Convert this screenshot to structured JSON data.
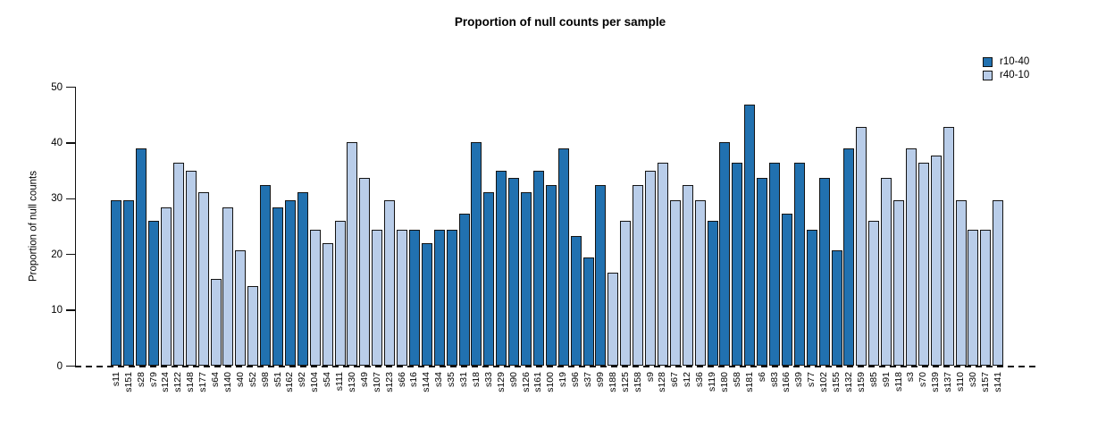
{
  "title": "Proportion of null counts per sample",
  "chart_data": {
    "type": "bar",
    "title": "Proportion of null counts per sample",
    "xlabel": "",
    "ylabel": "Proportion of null counts",
    "ylim": [
      0,
      50
    ],
    "yticks": [
      0,
      10,
      20,
      30,
      40,
      50
    ],
    "grid": false,
    "legend_position": "top-right",
    "legend": [
      {
        "name": "r10-40",
        "color": "#2171b0"
      },
      {
        "name": "r40-10",
        "color": "#b9cde9"
      }
    ],
    "series_colors": {
      "r10-40": "#2171b0",
      "r40-10": "#b9cde9"
    },
    "bar_border_color": "#141414",
    "samples": [
      {
        "label": "s11",
        "value": 29.8,
        "series": "r10-40"
      },
      {
        "label": "s151",
        "value": 29.8,
        "series": "r10-40"
      },
      {
        "label": "s28",
        "value": 39.0,
        "series": "r10-40"
      },
      {
        "label": "s79",
        "value": 26.0,
        "series": "r10-40"
      },
      {
        "label": "s124",
        "value": 28.5,
        "series": "r40-10"
      },
      {
        "label": "s122",
        "value": 36.4,
        "series": "r40-10"
      },
      {
        "label": "s148",
        "value": 35.0,
        "series": "r40-10"
      },
      {
        "label": "s177",
        "value": 31.2,
        "series": "r40-10"
      },
      {
        "label": "s64",
        "value": 15.6,
        "series": "r40-10"
      },
      {
        "label": "s140",
        "value": 28.5,
        "series": "r40-10"
      },
      {
        "label": "s40",
        "value": 20.8,
        "series": "r40-10"
      },
      {
        "label": "s52",
        "value": 14.3,
        "series": "r40-10"
      },
      {
        "label": "s98",
        "value": 32.5,
        "series": "r10-40"
      },
      {
        "label": "s51",
        "value": 28.5,
        "series": "r10-40"
      },
      {
        "label": "s162",
        "value": 29.8,
        "series": "r10-40"
      },
      {
        "label": "s92",
        "value": 31.2,
        "series": "r10-40"
      },
      {
        "label": "s104",
        "value": 24.5,
        "series": "r40-10"
      },
      {
        "label": "s54",
        "value": 22.1,
        "series": "r40-10"
      },
      {
        "label": "s111",
        "value": 26.0,
        "series": "r40-10"
      },
      {
        "label": "s130",
        "value": 40.2,
        "series": "r40-10"
      },
      {
        "label": "s49",
        "value": 33.8,
        "series": "r40-10"
      },
      {
        "label": "s107",
        "value": 24.5,
        "series": "r40-10"
      },
      {
        "label": "s123",
        "value": 29.8,
        "series": "r40-10"
      },
      {
        "label": "s66",
        "value": 24.5,
        "series": "r40-10"
      },
      {
        "label": "s16",
        "value": 24.5,
        "series": "r10-40"
      },
      {
        "label": "s144",
        "value": 22.1,
        "series": "r10-40"
      },
      {
        "label": "s34",
        "value": 24.5,
        "series": "r10-40"
      },
      {
        "label": "s35",
        "value": 24.5,
        "series": "r10-40"
      },
      {
        "label": "s31",
        "value": 27.3,
        "series": "r10-40"
      },
      {
        "label": "s18",
        "value": 40.2,
        "series": "r10-40"
      },
      {
        "label": "s33",
        "value": 31.2,
        "series": "r10-40"
      },
      {
        "label": "s129",
        "value": 35.0,
        "series": "r10-40"
      },
      {
        "label": "s90",
        "value": 33.8,
        "series": "r10-40"
      },
      {
        "label": "s126",
        "value": 31.2,
        "series": "r10-40"
      },
      {
        "label": "s161",
        "value": 35.0,
        "series": "r10-40"
      },
      {
        "label": "s100",
        "value": 32.5,
        "series": "r10-40"
      },
      {
        "label": "s19",
        "value": 39.0,
        "series": "r10-40"
      },
      {
        "label": "s96",
        "value": 23.3,
        "series": "r10-40"
      },
      {
        "label": "s37",
        "value": 19.5,
        "series": "r10-40"
      },
      {
        "label": "s99",
        "value": 32.5,
        "series": "r10-40"
      },
      {
        "label": "s188",
        "value": 16.8,
        "series": "r40-10"
      },
      {
        "label": "s125",
        "value": 26.0,
        "series": "r40-10"
      },
      {
        "label": "s158",
        "value": 32.5,
        "series": "r40-10"
      },
      {
        "label": "s9",
        "value": 35.0,
        "series": "r40-10"
      },
      {
        "label": "s128",
        "value": 36.4,
        "series": "r40-10"
      },
      {
        "label": "s67",
        "value": 29.8,
        "series": "r40-10"
      },
      {
        "label": "s12",
        "value": 32.5,
        "series": "r40-10"
      },
      {
        "label": "s36",
        "value": 29.8,
        "series": "r40-10"
      },
      {
        "label": "s119",
        "value": 26.0,
        "series": "r10-40"
      },
      {
        "label": "s180",
        "value": 40.2,
        "series": "r10-40"
      },
      {
        "label": "s58",
        "value": 36.4,
        "series": "r10-40"
      },
      {
        "label": "s181",
        "value": 46.8,
        "series": "r10-40"
      },
      {
        "label": "s6",
        "value": 33.8,
        "series": "r10-40"
      },
      {
        "label": "s83",
        "value": 36.4,
        "series": "r10-40"
      },
      {
        "label": "s166",
        "value": 27.3,
        "series": "r10-40"
      },
      {
        "label": "s39",
        "value": 36.4,
        "series": "r10-40"
      },
      {
        "label": "s77",
        "value": 24.5,
        "series": "r10-40"
      },
      {
        "label": "s102",
        "value": 33.8,
        "series": "r10-40"
      },
      {
        "label": "s155",
        "value": 20.8,
        "series": "r10-40"
      },
      {
        "label": "s132",
        "value": 39.0,
        "series": "r10-40"
      },
      {
        "label": "s159",
        "value": 42.8,
        "series": "r40-10"
      },
      {
        "label": "s85",
        "value": 26.0,
        "series": "r40-10"
      },
      {
        "label": "s91",
        "value": 33.8,
        "series": "r40-10"
      },
      {
        "label": "s118",
        "value": 29.8,
        "series": "r40-10"
      },
      {
        "label": "s3",
        "value": 39.0,
        "series": "r40-10"
      },
      {
        "label": "s70",
        "value": 36.4,
        "series": "r40-10"
      },
      {
        "label": "s139",
        "value": 37.7,
        "series": "r40-10"
      },
      {
        "label": "s137",
        "value": 42.8,
        "series": "r40-10"
      },
      {
        "label": "s110",
        "value": 29.8,
        "series": "r40-10"
      },
      {
        "label": "s30",
        "value": 24.5,
        "series": "r40-10"
      },
      {
        "label": "s157",
        "value": 24.5,
        "series": "r40-10"
      },
      {
        "label": "s141",
        "value": 29.8,
        "series": "r40-10"
      }
    ]
  }
}
